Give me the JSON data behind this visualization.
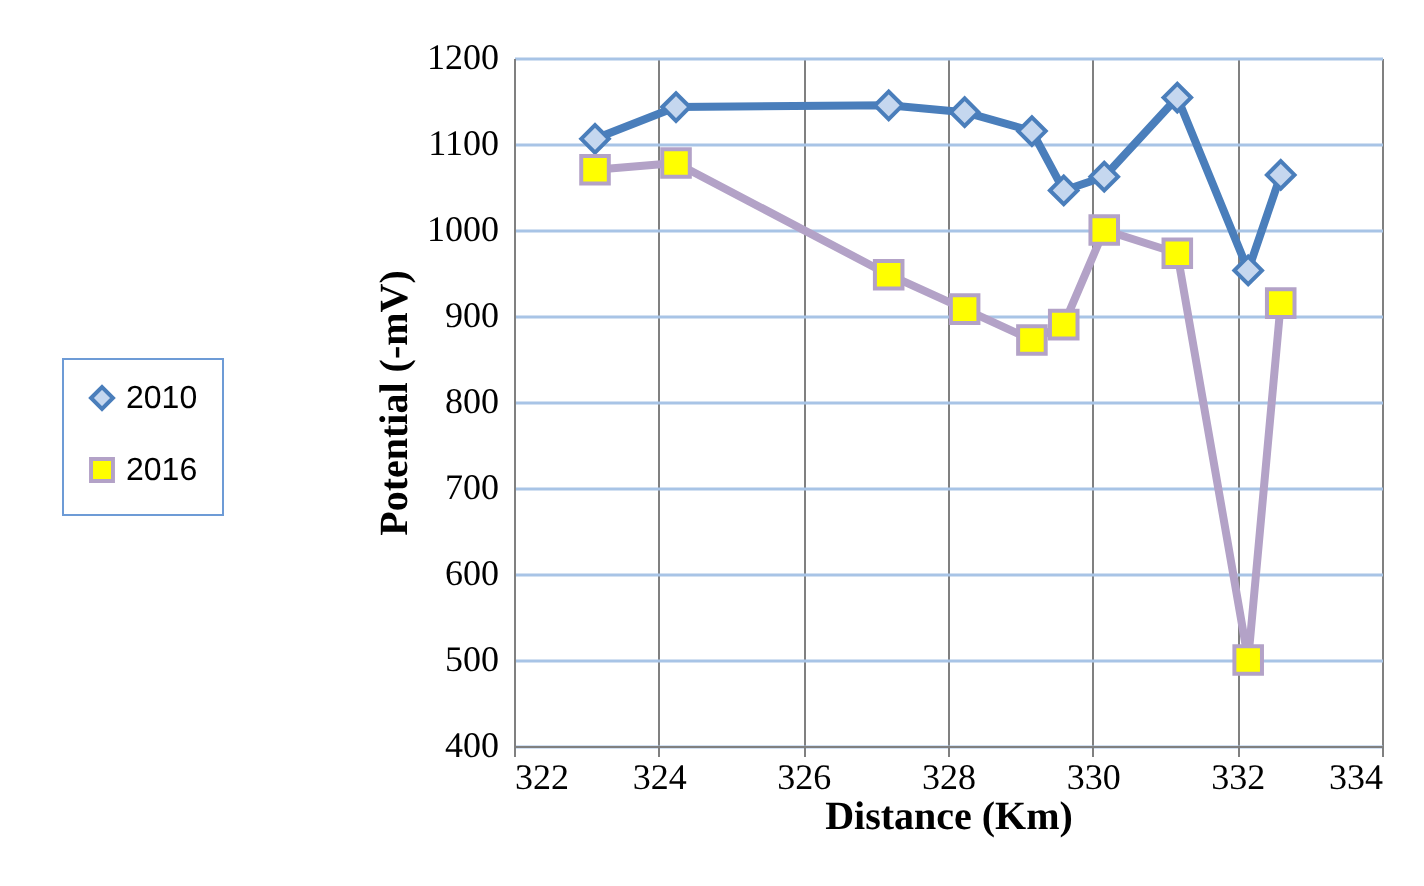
{
  "chart_data": {
    "type": "line",
    "xlabel": "Distance (Km)",
    "ylabel": "Potential (-mV)",
    "xlim": [
      322,
      334
    ],
    "xticks": [
      322,
      324,
      326,
      328,
      330,
      332,
      334
    ],
    "ylim": [
      400,
      1200
    ],
    "yticks": [
      400,
      500,
      600,
      700,
      800,
      900,
      1000,
      1100,
      1200
    ],
    "grid": true,
    "legend": "left",
    "x": [
      323.12,
      324.24,
      327.18,
      328.23,
      329.16,
      329.6,
      330.16,
      331.17,
      332.15,
      332.6
    ],
    "series": [
      {
        "name": "2010",
        "color": "#4a7ebb",
        "marker": "diamond",
        "values": [
          1106,
          1143,
          1145,
          1137,
          1115,
          1046,
          1062,
          1154,
          953,
          1064
        ]
      },
      {
        "name": "2016",
        "color": "#b3a2c7",
        "marker": "square",
        "values": [
          1070,
          1078,
          948,
          908,
          872,
          890,
          1000,
          973,
          500,
          915
        ]
      }
    ]
  }
}
